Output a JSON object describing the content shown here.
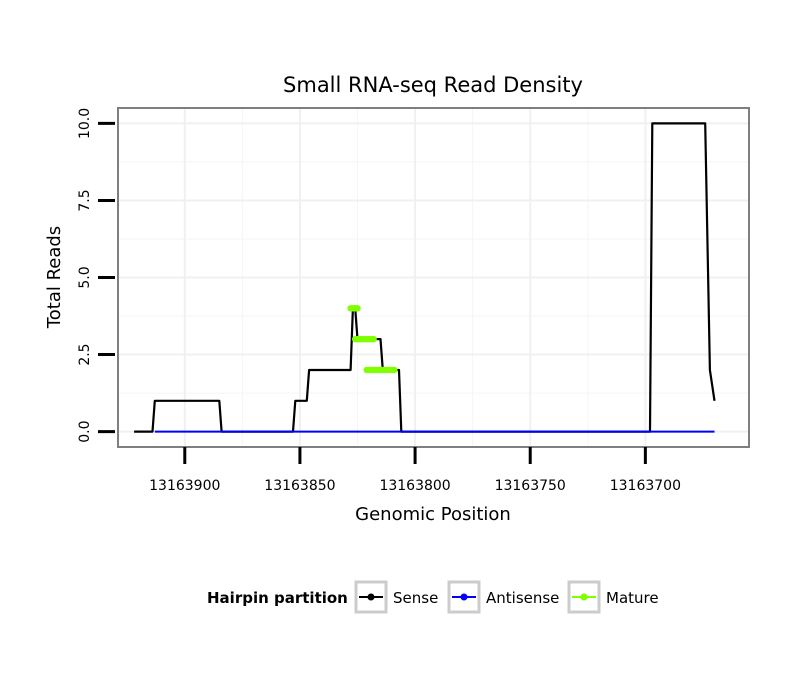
{
  "chart_data": {
    "type": "line",
    "title": "Small RNA-seq Read Density",
    "xlabel": "Genomic Position",
    "ylabel": "Total Reads",
    "x_reversed": true,
    "xlim": [
      13163929,
      13163655
    ],
    "ylim": [
      -0.5,
      10.5
    ],
    "x_ticks": [
      13163900,
      13163850,
      13163800,
      13163750,
      13163700
    ],
    "x_tick_labels": [
      "13163900",
      "13163850",
      "13163800",
      "13163750",
      "13163700"
    ],
    "y_ticks": [
      0,
      2.5,
      5,
      7.5,
      10
    ],
    "y_tick_labels": [
      "0.0",
      "2.5",
      "5.0",
      "7.5",
      "10.0"
    ],
    "grid": true,
    "legend": {
      "title": "Hairpin partition",
      "position": "bottom",
      "entries": [
        {
          "name": "Sense",
          "color": "#000000"
        },
        {
          "name": "Antisense",
          "color": "#0000ff"
        },
        {
          "name": "Mature",
          "color": "#80ff00"
        }
      ]
    },
    "series": [
      {
        "name": "Sense",
        "color": "#000000",
        "x": [
          13163922,
          13163914,
          13163913,
          13163885,
          13163884,
          13163853,
          13163852,
          13163847,
          13163846,
          13163840,
          13163839,
          13163828,
          13163827,
          13163826,
          13163825,
          13163822,
          13163821,
          13163815,
          13163814,
          13163807,
          13163806,
          13163800,
          13163750,
          13163700,
          13163698,
          13163697,
          13163675,
          13163674,
          13163672,
          13163670
        ],
        "y": [
          0,
          0,
          1,
          1,
          0,
          0,
          1,
          1,
          2,
          2,
          2,
          2,
          4,
          4,
          3,
          3,
          3,
          3,
          2,
          2,
          0,
          0,
          0,
          0,
          0,
          10,
          10,
          10,
          2,
          1
        ]
      },
      {
        "name": "Antisense",
        "color": "#0000ff",
        "x": [
          13163913,
          13163670
        ],
        "y": [
          0,
          0
        ]
      },
      {
        "name": "Mature",
        "color": "#80ff00",
        "segments": [
          {
            "x": [
              13163828,
              13163825
            ],
            "y": [
              4,
              4
            ]
          },
          {
            "x": [
              13163826,
              13163818
            ],
            "y": [
              3,
              3
            ]
          },
          {
            "x": [
              13163821,
              13163809
            ],
            "y": [
              2,
              2
            ]
          }
        ]
      }
    ]
  }
}
